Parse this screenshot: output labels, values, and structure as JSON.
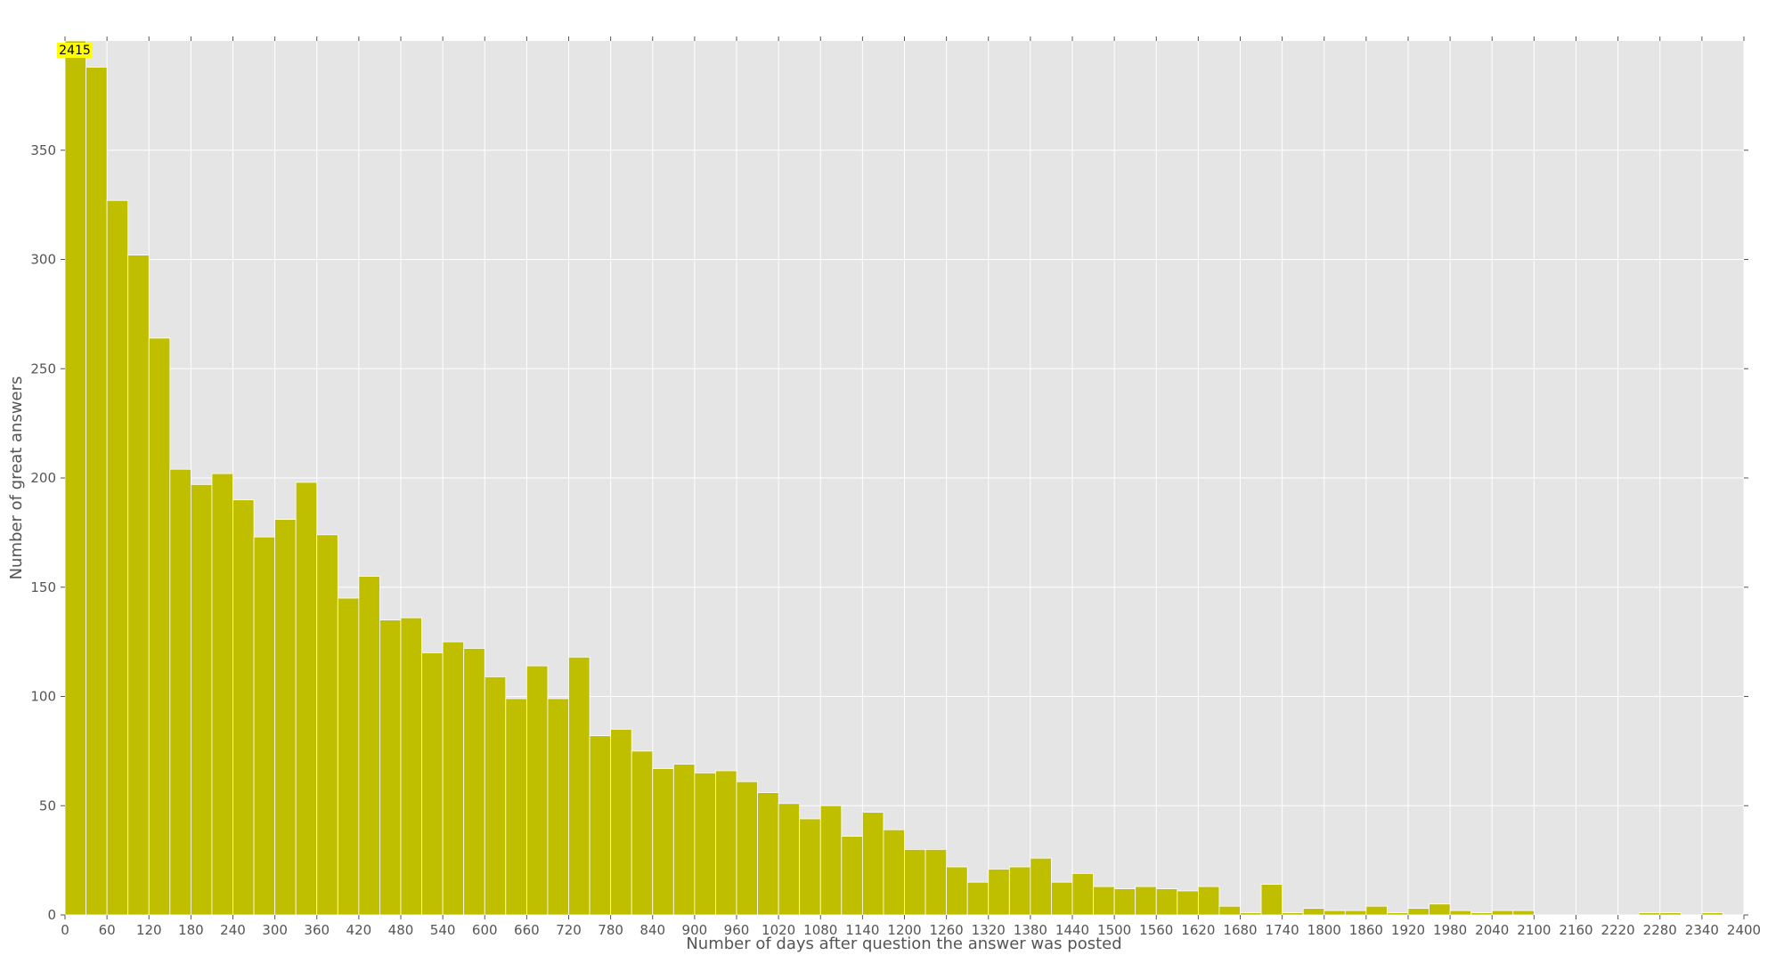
{
  "chart_data": {
    "type": "bar",
    "title": "",
    "xlabel": "Number of days after question the answer was posted",
    "ylabel": "Number of great answers",
    "bin_width": 30,
    "x_bin_starts": [
      0,
      30,
      60,
      90,
      120,
      150,
      180,
      210,
      240,
      270,
      300,
      330,
      360,
      390,
      420,
      450,
      480,
      510,
      540,
      570,
      600,
      630,
      660,
      690,
      720,
      750,
      780,
      810,
      840,
      870,
      900,
      930,
      960,
      990,
      1020,
      1050,
      1080,
      1110,
      1140,
      1170,
      1200,
      1230,
      1260,
      1290,
      1320,
      1350,
      1380,
      1410,
      1440,
      1470,
      1500,
      1530,
      1560,
      1590,
      1620,
      1650,
      1680,
      1710,
      1740,
      1770,
      1800,
      1830,
      1860,
      1890,
      1920,
      1950,
      1980,
      2010,
      2040,
      2070,
      2100,
      2130,
      2160,
      2190,
      2220,
      2250,
      2280,
      2310,
      2340,
      2370
    ],
    "values": [
      2415,
      388,
      327,
      302,
      264,
      204,
      197,
      202,
      190,
      173,
      181,
      198,
      174,
      145,
      155,
      135,
      136,
      120,
      125,
      122,
      109,
      99,
      114,
      99,
      118,
      82,
      85,
      75,
      67,
      69,
      65,
      66,
      61,
      56,
      51,
      44,
      50,
      36,
      47,
      39,
      30,
      30,
      22,
      15,
      21,
      22,
      26,
      15,
      19,
      13,
      12,
      13,
      12,
      11,
      13,
      4,
      1,
      14,
      1,
      3,
      2,
      2,
      4,
      1,
      3,
      5,
      2,
      1,
      2,
      2,
      0,
      0,
      0,
      0,
      0,
      1,
      1,
      0,
      1,
      0
    ],
    "xlim": [
      0,
      2400
    ],
    "ylim": [
      0,
      400
    ],
    "x_ticks": [
      0,
      60,
      120,
      180,
      240,
      300,
      360,
      420,
      480,
      540,
      600,
      660,
      720,
      780,
      840,
      900,
      960,
      1020,
      1080,
      1140,
      1200,
      1260,
      1320,
      1380,
      1440,
      1500,
      1560,
      1620,
      1680,
      1740,
      1800,
      1860,
      1920,
      1980,
      2040,
      2100,
      2160,
      2220,
      2280,
      2340,
      2400
    ],
    "y_ticks": [
      0,
      50,
      100,
      150,
      200,
      250,
      300,
      350
    ],
    "grid": true,
    "bar_color": "#bfbf00",
    "background_color": "#e5e5e5",
    "callout": {
      "text": "2415",
      "color": "#ffff00"
    }
  }
}
